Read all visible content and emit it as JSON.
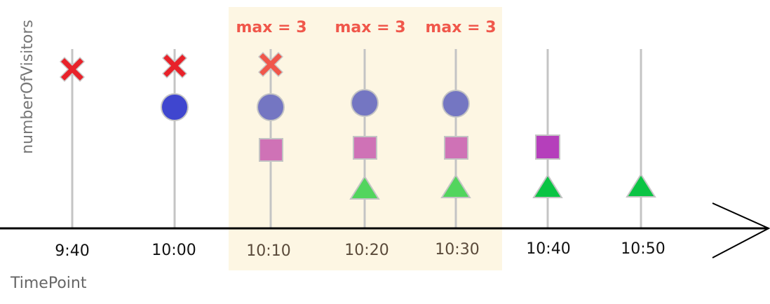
{
  "diagram": {
    "y_axis_label": "numberOfVisitors",
    "x_axis_label": "TimePoint",
    "window_label": "max = 3",
    "window_labels": [
      "max = 3",
      "max = 3",
      "max = 3"
    ],
    "time_points": [
      "9:40",
      "10:00",
      "10:10",
      "10:20",
      "10:30",
      "10:40",
      "10:50"
    ],
    "window_time_points": [
      "10:10",
      "10:20",
      "10:30"
    ],
    "colors": {
      "window_bg": "#fdf6e3",
      "window_label": "#f0574b",
      "cross": "#e8222a",
      "cross_faded": "#f0574b",
      "circle": "#3f46cf",
      "circle_faded": "#7476c2",
      "square": "#b53fbb",
      "square_faded": "#cf72b6",
      "triangle": "#0ac444",
      "triangle_faded": "#52d55e",
      "stem": "#c4c4c4",
      "axis": "#000000"
    },
    "events": [
      {
        "shape": "cross",
        "times": [
          "9:40",
          "10:00",
          "10:10"
        ]
      },
      {
        "shape": "circle",
        "times": [
          "10:00",
          "10:10",
          "10:20",
          "10:30"
        ]
      },
      {
        "shape": "square",
        "times": [
          "10:10",
          "10:20",
          "10:30",
          "10:40"
        ]
      },
      {
        "shape": "triangle",
        "times": [
          "10:20",
          "10:30",
          "10:40",
          "10:50"
        ]
      }
    ]
  }
}
